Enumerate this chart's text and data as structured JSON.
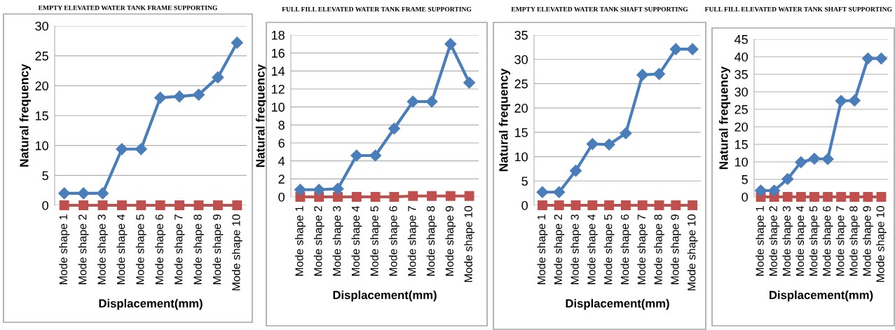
{
  "chart_data": [
    {
      "type": "line",
      "title": "EMPTY ELEVATED WATER TANK FRAME SUPPORTING",
      "xlabel": "Displacement(mm)",
      "ylabel": "Natural frequency",
      "categories": [
        "Mode shape 1",
        "Mode shape 2",
        "Mode shape 3",
        "Mode shape 4",
        "Mode shape 5",
        "Mode shape 6",
        "Mode shape 7",
        "Mode shape 8",
        "Mode shape 9",
        "Mode shape 10"
      ],
      "series": [
        {
          "color": "#4a7ebb",
          "marker": "diamond",
          "values": [
            2,
            2,
            2,
            9.4,
            9.4,
            18,
            18.2,
            18.5,
            21.4,
            27.2
          ]
        },
        {
          "color": "#c0504d",
          "marker": "square",
          "values": [
            0,
            0,
            0,
            0,
            0,
            0,
            0,
            0,
            0,
            0
          ]
        }
      ],
      "ylim": [
        0,
        30
      ],
      "yticks": [
        0,
        5,
        10,
        15,
        20,
        25,
        30
      ],
      "grid": "y"
    },
    {
      "type": "line",
      "title": "FULL FILL ELEVATED WATER TANK FRAME SUPPORTING",
      "xlabel": "Displacement(mm)",
      "ylabel": "Natural frequency",
      "categories": [
        "Mode shape 1",
        "Mode shape 2",
        "Mode shape 3",
        "Mode shape 4",
        "Mode shape 5",
        "Mode shape 6",
        "Mode shape 7",
        "Mode shape 8",
        "Mode shape 9",
        "Mode shape 10"
      ],
      "series": [
        {
          "color": "#4a7ebb",
          "marker": "diamond",
          "values": [
            0.8,
            0.8,
            0.9,
            4.6,
            4.6,
            7.6,
            10.6,
            10.6,
            17,
            12.7
          ]
        },
        {
          "color": "#c0504d",
          "marker": "square",
          "values": [
            0,
            0,
            0,
            0,
            0,
            0,
            0.1,
            0.1,
            0.1,
            0.1
          ]
        }
      ],
      "ylim": [
        0,
        18
      ],
      "yticks": [
        0,
        2,
        4,
        6,
        8,
        10,
        12,
        14,
        16,
        18
      ],
      "grid": "y"
    },
    {
      "type": "line",
      "title": "EMPTY ELEVATED WATER TANK SHAFT SUPPORTING",
      "xlabel": "Displacement(mm)",
      "ylabel": "Natural frequency",
      "categories": [
        "Mode shape 1",
        "Mode shape 2",
        "Mode shape 3",
        "Mode shape 4",
        "Mode shape 5",
        "Mode shape 6",
        "Mode shape 7",
        "Mode shape 8",
        "Mode shape 9",
        "Mode shape 10"
      ],
      "series": [
        {
          "color": "#4a7ebb",
          "marker": "diamond",
          "values": [
            2.7,
            2.7,
            7.1,
            12.6,
            12.5,
            14.8,
            26.8,
            27,
            32.1,
            32.1
          ]
        },
        {
          "color": "#c0504d",
          "marker": "square",
          "values": [
            0,
            0,
            0,
            0,
            0,
            0,
            0,
            0,
            0,
            0
          ]
        }
      ],
      "ylim": [
        0,
        35
      ],
      "yticks": [
        0,
        5,
        10,
        15,
        20,
        25,
        30,
        35
      ],
      "grid": "y"
    },
    {
      "type": "line",
      "title": "FULL FILL ELEVATED WATER TANK SHAFT SUPPORTING",
      "xlabel": "Displacement(mm)",
      "ylabel": "Natural frequency",
      "categories": [
        "Mode shape 1",
        "Mode shape 2",
        "Mode shape 3",
        "Mode shape 4",
        "Mode shape 5",
        "Mode shape 6",
        "Mode shape 7",
        "Mode shape 8",
        "Mode shape 9",
        "Mode shape 10"
      ],
      "series": [
        {
          "color": "#4a7ebb",
          "marker": "diamond",
          "values": [
            1.8,
            1.8,
            5.1,
            9.9,
            10.9,
            10.8,
            27.4,
            27.5,
            39.5,
            39.5
          ]
        },
        {
          "color": "#c0504d",
          "marker": "square",
          "values": [
            0,
            0,
            0,
            0,
            0,
            0,
            0,
            0,
            0,
            0
          ]
        }
      ],
      "ylim": [
        0,
        45
      ],
      "yticks": [
        0,
        5,
        10,
        15,
        20,
        25,
        30,
        35,
        40,
        45
      ],
      "grid": "y"
    }
  ]
}
